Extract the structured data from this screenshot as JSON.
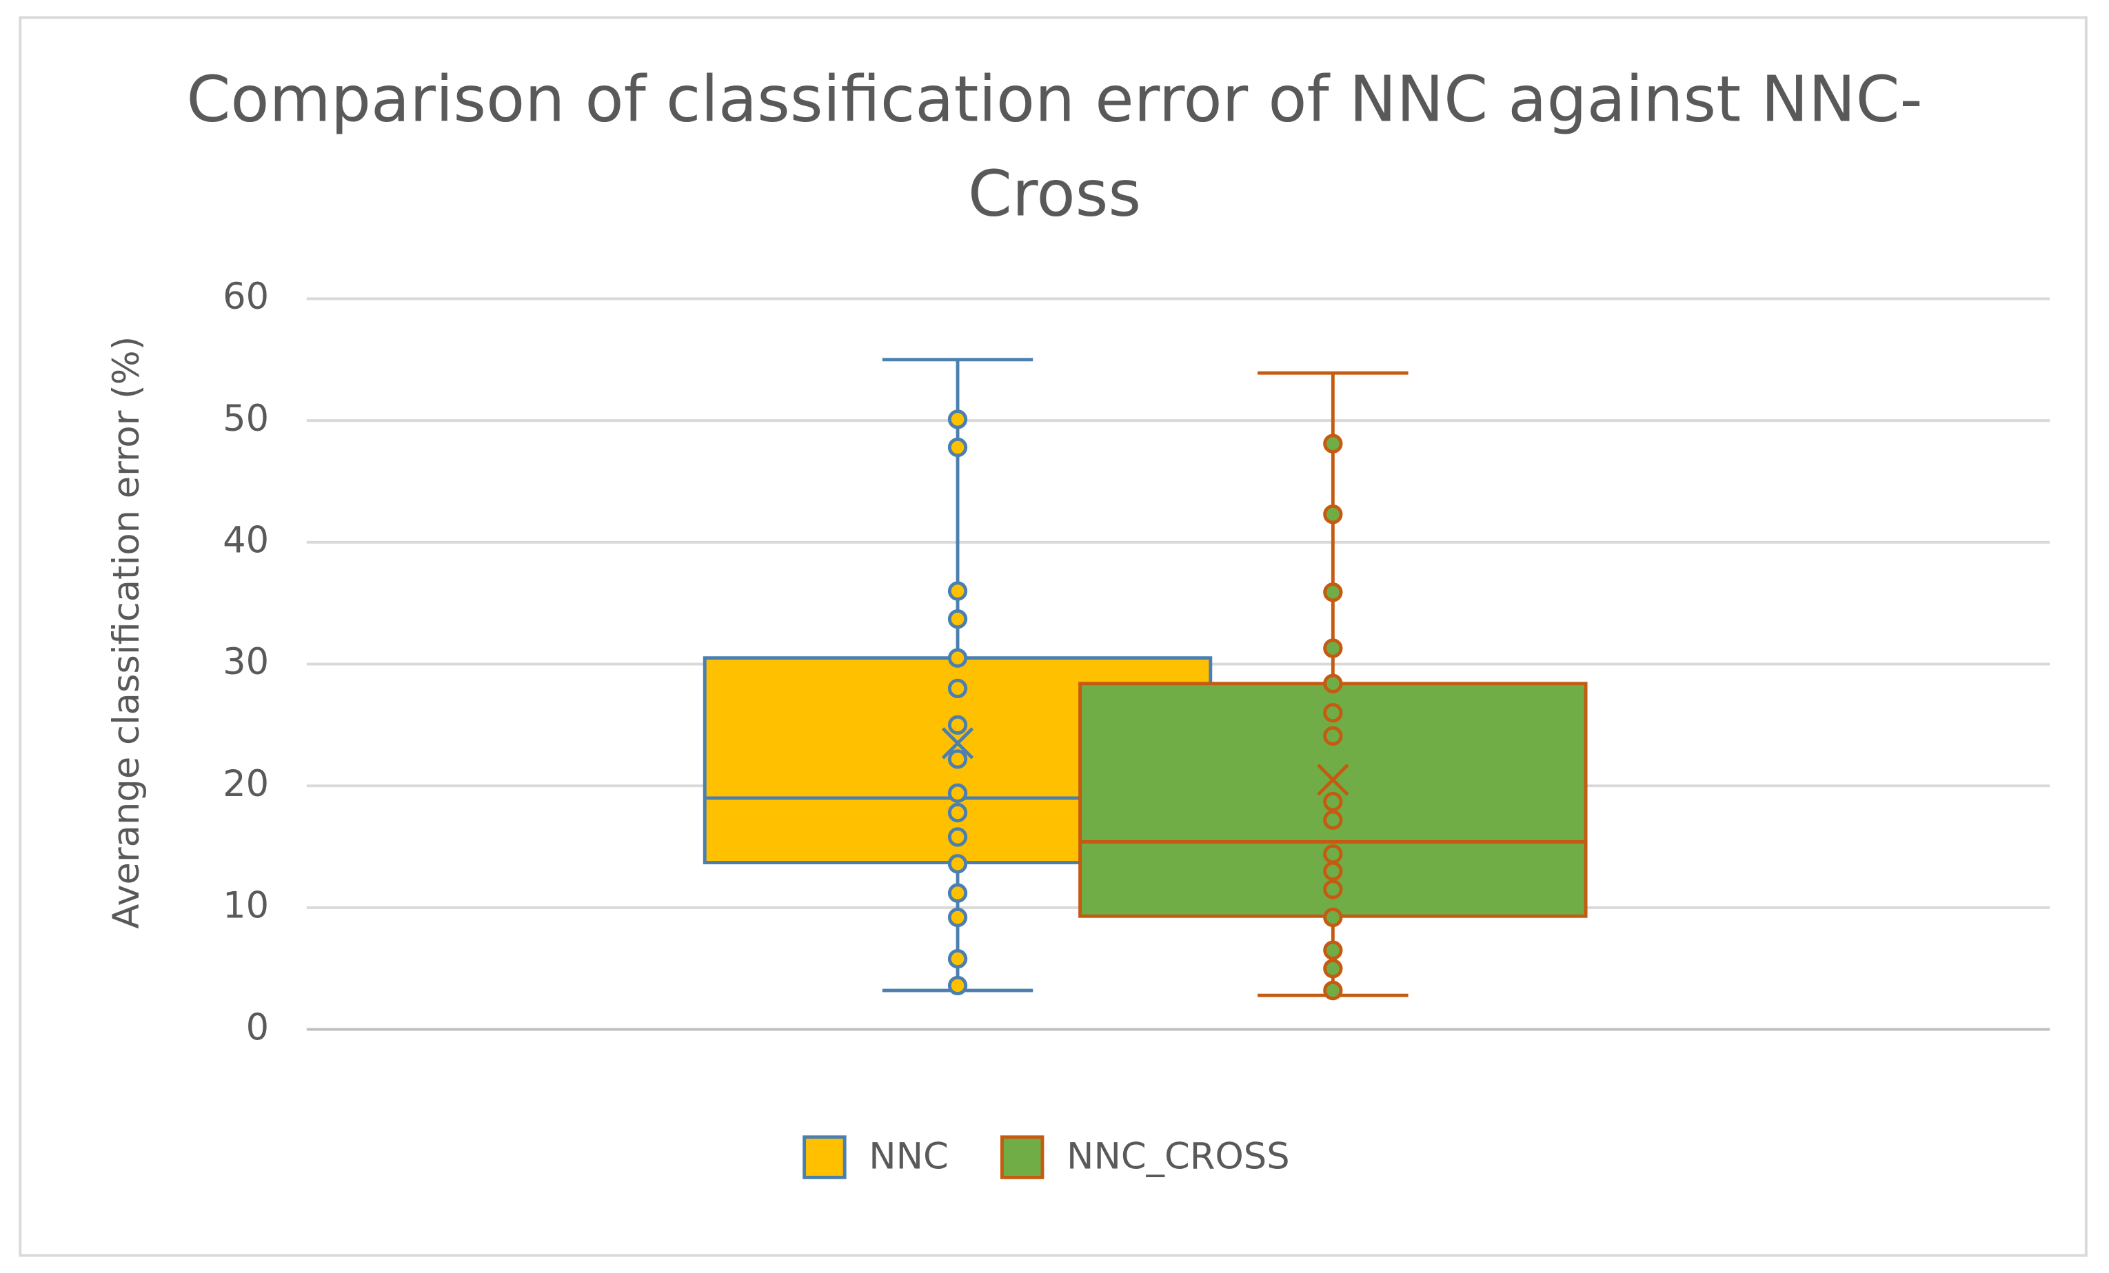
{
  "chart_data": {
    "type": "box",
    "title": "Comparison of classification error of NNC against NNC-Cross",
    "y_label": "Averange classification error (%)",
    "ylim": [
      0,
      60
    ],
    "yticks": [
      0,
      10,
      20,
      30,
      40,
      50,
      60
    ],
    "grid": true,
    "legend": "bottom",
    "series": [
      {
        "name": "NNC",
        "color": "#ffc000",
        "line_color": "#4a7fb0",
        "min": 3.2,
        "q1": 13.7,
        "median": 19,
        "q3": 30.5,
        "max": 55,
        "mean": 23.5,
        "points": [
          3.6,
          5.8,
          9.2,
          11.2,
          13.6,
          15.8,
          17.8,
          19.4,
          22.2,
          25,
          28,
          30.5,
          33.7,
          36,
          47.8,
          50.1
        ]
      },
      {
        "name": "NNC_CROSS",
        "color": "#70ad47",
        "line_color": "#c55a11",
        "min": 2.8,
        "q1": 9.3,
        "median": 15.4,
        "q3": 28.4,
        "max": 53.9,
        "mean": 20.5,
        "points": [
          3.2,
          5.0,
          6.5,
          9.2,
          11.5,
          13,
          14.4,
          17.2,
          18.7,
          24.1,
          26,
          28.4,
          31.3,
          35.9,
          42.3,
          48.1
        ]
      }
    ]
  }
}
